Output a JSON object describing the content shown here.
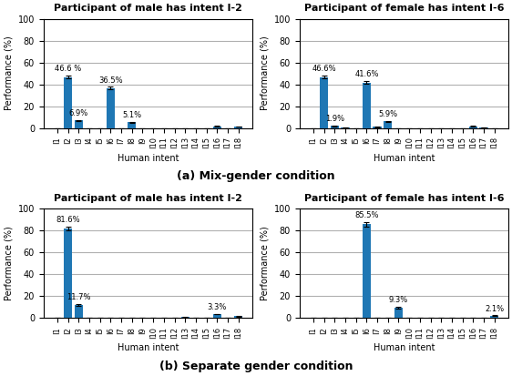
{
  "chart_data": [
    {
      "type": "bar",
      "title": "Participant of male has intent I-2",
      "x_label": "Human intent",
      "y_label": "Performance (%)",
      "categories": [
        "I1",
        "I2",
        "I3",
        "I4",
        "I5",
        "I6",
        "I7",
        "I8",
        "I9",
        "I10",
        "I11",
        "I12",
        "I13",
        "I14",
        "I15",
        "I16",
        "I17",
        "I18"
      ],
      "values": [
        0,
        46.6,
        6.9,
        0,
        0,
        36.5,
        0,
        5.1,
        0,
        0,
        0,
        0,
        0,
        0,
        0,
        1.5,
        0,
        1.0
      ],
      "errors": [
        0,
        1.5,
        0.5,
        0,
        0,
        1.2,
        0,
        0.4,
        0,
        0,
        0,
        0,
        0,
        0,
        0,
        0.2,
        0,
        0.1
      ],
      "value_labels": [
        null,
        "46.6 %",
        "6.9%",
        null,
        null,
        "36.5%",
        null,
        "5.1%",
        null,
        null,
        null,
        null,
        null,
        null,
        null,
        null,
        null,
        null
      ],
      "data_labels": true,
      "ylim": [
        0,
        100
      ],
      "yticks": [
        0,
        20,
        40,
        60,
        80,
        100
      ],
      "grid": true
    },
    {
      "type": "bar",
      "title": "Participant of female has intent I-6",
      "x_label": "Human intent",
      "y_label": "Performance (%)",
      "categories": [
        "I1",
        "I2",
        "I3",
        "I4",
        "I5",
        "I6",
        "I7",
        "I8",
        "I9",
        "I10",
        "I11",
        "I12",
        "I13",
        "I14",
        "I15",
        "I16",
        "I17",
        "I18"
      ],
      "values": [
        0,
        46.6,
        1.9,
        0.5,
        0,
        41.6,
        1.0,
        5.9,
        0,
        0,
        0,
        0,
        0,
        0,
        0,
        1.5,
        0.5,
        0
      ],
      "errors": [
        0,
        1.5,
        0.3,
        0.1,
        0,
        1.3,
        0.2,
        0.5,
        0,
        0,
        0,
        0,
        0,
        0,
        0,
        0.2,
        0.1,
        0
      ],
      "value_labels": [
        null,
        "46.6%",
        "1.9%",
        null,
        null,
        "41.6%",
        null,
        "5.9%",
        null,
        null,
        null,
        null,
        null,
        null,
        null,
        null,
        null,
        null
      ],
      "data_labels": true,
      "ylim": [
        0,
        100
      ],
      "yticks": [
        0,
        20,
        40,
        60,
        80,
        100
      ],
      "grid": true
    },
    {
      "type": "bar",
      "title": "Participant of male has intent I-2",
      "x_label": "Human intent",
      "y_label": "Performance (%)",
      "categories": [
        "I1",
        "I2",
        "I3",
        "I4",
        "I5",
        "I6",
        "I7",
        "I8",
        "I9",
        "I10",
        "I11",
        "I12",
        "I13",
        "I14",
        "I15",
        "I16",
        "I17",
        "I18"
      ],
      "values": [
        0,
        81.6,
        11.7,
        0,
        0,
        0,
        0,
        0,
        0,
        0,
        0,
        0,
        0.5,
        0.3,
        0,
        3.3,
        0.3,
        1.5
      ],
      "errors": [
        0,
        1.8,
        0.8,
        0,
        0,
        0,
        0,
        0,
        0,
        0,
        0,
        0,
        0.1,
        0.1,
        0,
        0.3,
        0.1,
        0.2
      ],
      "value_labels": [
        null,
        "81.6%",
        "11.7%",
        null,
        null,
        null,
        null,
        null,
        null,
        null,
        null,
        null,
        null,
        null,
        null,
        "3.3%",
        null,
        null
      ],
      "data_labels": true,
      "ylim": [
        0,
        100
      ],
      "yticks": [
        0,
        20,
        40,
        60,
        80,
        100
      ],
      "grid": true
    },
    {
      "type": "bar",
      "title": "Participant of female has intent I-6",
      "x_label": "Human intent",
      "y_label": "Performance (%)",
      "categories": [
        "I1",
        "I2",
        "I3",
        "I4",
        "I5",
        "I6",
        "I7",
        "I8",
        "I9",
        "I10",
        "I11",
        "I12",
        "I13",
        "I14",
        "I15",
        "I16",
        "I17",
        "I18"
      ],
      "values": [
        0,
        0,
        0,
        0,
        0,
        85.5,
        0,
        0,
        9.3,
        0,
        0,
        0,
        0,
        0,
        0,
        0,
        0,
        2.1
      ],
      "errors": [
        0,
        0,
        0,
        0,
        0,
        2.0,
        0,
        0,
        0.6,
        0,
        0,
        0,
        0,
        0,
        0,
        0,
        0,
        0.2
      ],
      "value_labels": [
        null,
        null,
        null,
        null,
        null,
        "85.5%",
        null,
        null,
        "9.3%",
        null,
        null,
        null,
        null,
        null,
        null,
        null,
        null,
        "2.1%"
      ],
      "data_labels": true,
      "ylim": [
        0,
        100
      ],
      "yticks": [
        0,
        20,
        40,
        60,
        80,
        100
      ],
      "grid": true
    }
  ],
  "annotations": [
    "(a) Mix-gender condition",
    "(b) Separate gender condition"
  ]
}
